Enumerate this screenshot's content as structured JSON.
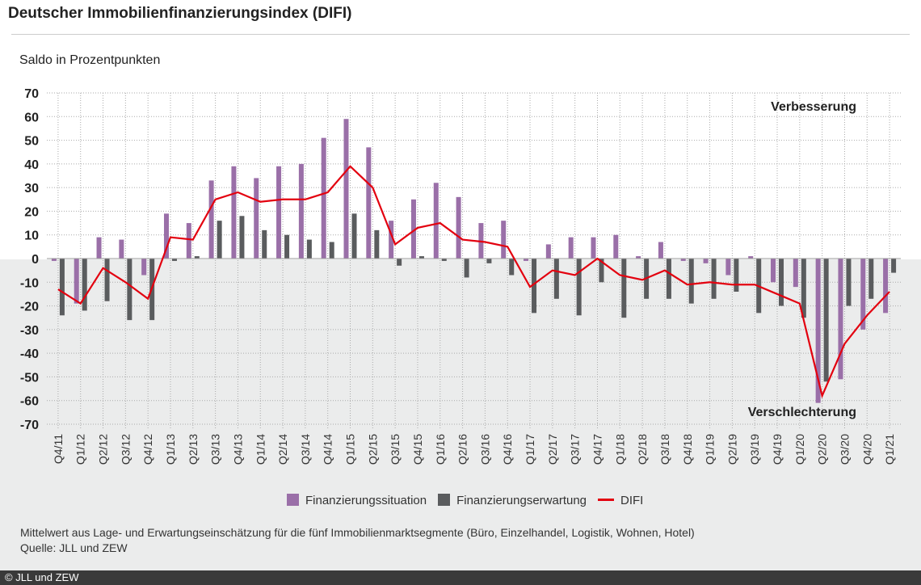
{
  "title": "Deutscher Immobilienfinanzierungsindex (DIFI)",
  "note": "Mittelwert aus Lage- und Erwartungseinschätzung für die fünf Immobilienmarktsegmente (Büro, Einzelhandel, Logistik, Wohnen, Hotel)",
  "source": "Quelle: JLL und ZEW",
  "footer": "© JLL und ZEW",
  "colors": {
    "situation": "#9a6fa8",
    "erwartung": "#5a5c5e",
    "difi": "#e3000f"
  },
  "chart_data": {
    "type": "bar",
    "title": "Deutscher Immobilienfinanzierungsindex (DIFI)",
    "ylabel": "Saldo in Prozentpunkten",
    "xlabel": "",
    "ylim": [
      -70,
      70
    ],
    "yticks": [
      70,
      60,
      50,
      40,
      30,
      20,
      10,
      0,
      -10,
      -20,
      -30,
      -40,
      -50,
      -60,
      -70
    ],
    "annotations": {
      "top": "Verbesserung",
      "bottom": "Verschlechterung"
    },
    "legend": "bottom",
    "categories": [
      "Q4/11",
      "Q1/12",
      "Q2/12",
      "Q3/12",
      "Q4/12",
      "Q1/13",
      "Q2/13",
      "Q3/13",
      "Q4/13",
      "Q1/14",
      "Q2/14",
      "Q3/14",
      "Q4/14",
      "Q1/15",
      "Q2/15",
      "Q3/15",
      "Q4/15",
      "Q1/16",
      "Q2/16",
      "Q3/16",
      "Q4/16",
      "Q1/17",
      "Q2/17",
      "Q3/17",
      "Q4/17",
      "Q1/18",
      "Q2/18",
      "Q3/18",
      "Q4/18",
      "Q1/19",
      "Q2/19",
      "Q3/19",
      "Q4/19",
      "Q1/20",
      "Q2/20",
      "Q3/20",
      "Q4/20",
      "Q1/21"
    ],
    "series": [
      {
        "name": "Finanzierungssituation",
        "type": "bar",
        "values": [
          -1,
          -19,
          9,
          8,
          -7,
          19,
          15,
          33,
          39,
          34,
          39,
          40,
          51,
          59,
          47,
          16,
          25,
          32,
          26,
          15,
          16,
          -1,
          6,
          9,
          9,
          10,
          1,
          7,
          -1,
          -2,
          -7,
          1,
          -10,
          -12,
          -61,
          -51,
          -30,
          -23
        ]
      },
      {
        "name": "Finanzierungserwartung",
        "type": "bar",
        "values": [
          -24,
          -22,
          -18,
          -26,
          -26,
          -1,
          1,
          16,
          18,
          12,
          10,
          8,
          7,
          19,
          12,
          -3,
          1,
          -1,
          -8,
          -2,
          -7,
          -23,
          -17,
          -24,
          -10,
          -25,
          -17,
          -17,
          -19,
          -17,
          -14,
          -23,
          -20,
          -25,
          -52,
          -20,
          -17,
          -6
        ]
      },
      {
        "name": "DIFI",
        "type": "line",
        "values": [
          -13,
          -19,
          -4,
          -10,
          -17,
          9,
          8,
          25,
          28,
          24,
          25,
          25,
          28,
          39,
          30,
          6,
          13,
          15,
          8,
          7,
          5,
          -12,
          -5,
          -7,
          0,
          -7,
          -9,
          -5,
          -11,
          -10,
          -11,
          -11,
          -15,
          -19,
          -58,
          -36,
          -24,
          -14
        ]
      }
    ]
  }
}
